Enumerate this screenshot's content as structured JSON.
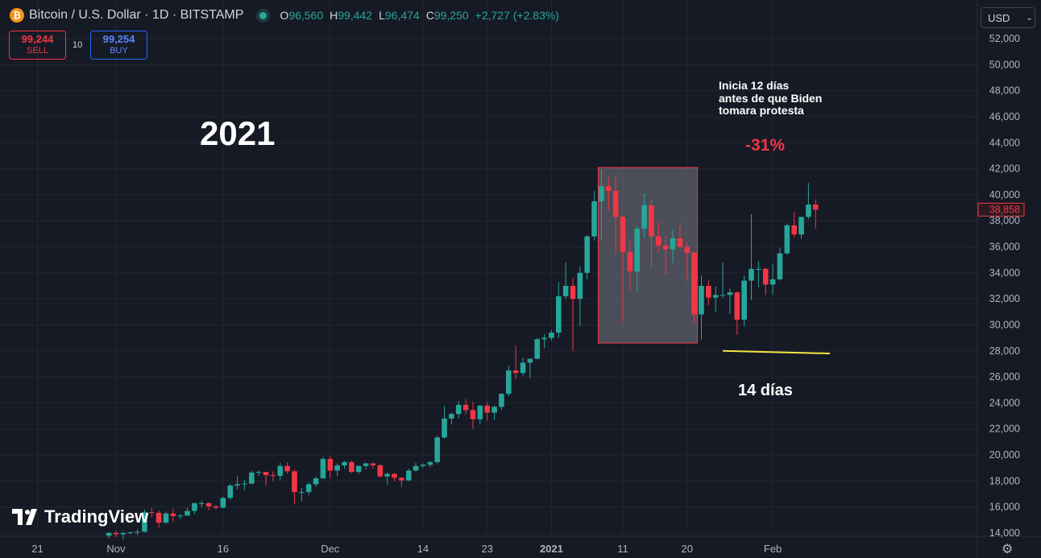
{
  "header": {
    "symbol_icon": "bitcoin-icon",
    "title": "Bitcoin / U.S. Dollar · 1D · BITSTAMP",
    "ohlc": [
      {
        "k": "O",
        "v": "96,560"
      },
      {
        "k": "H",
        "v": "99,442"
      },
      {
        "k": "L",
        "v": "96,474"
      },
      {
        "k": "C",
        "v": "99,250"
      },
      {
        "k": "",
        "v": "+2,727 (+2.83%)"
      }
    ]
  },
  "trade": {
    "sell_price": "99,244",
    "sell_label": "SELL",
    "spread": "10",
    "buy_price": "99,254",
    "buy_label": "BUY"
  },
  "currency": {
    "value": "USD",
    "icon": "chevron-down-icon"
  },
  "brand": {
    "name": "TradingView",
    "icon": "tradingview-logo-icon"
  },
  "settings_icon": "gear-icon",
  "colors": {
    "up": "#26a69a",
    "down": "#f23645",
    "background": "#161a25",
    "grid": "#232632",
    "trendline": "#f5e642"
  },
  "annotations": {
    "year": "2021",
    "note": [
      "Inicia 12 días",
      "antes de que Biden",
      "tomara protesta"
    ],
    "percent": "-31%",
    "duration": "14 días"
  },
  "chart_data": {
    "type": "candlestick",
    "title": "",
    "xlabel": "",
    "ylabel": "",
    "ylim": [
      14000,
      53000
    ],
    "grid": true,
    "last_price_label": "38,858",
    "y_ticks": [
      14000,
      16000,
      18000,
      20000,
      22000,
      24000,
      26000,
      28000,
      30000,
      32000,
      34000,
      36000,
      38000,
      40000,
      42000,
      44000,
      46000,
      48000,
      50000,
      52000
    ],
    "x_ticks": [
      "21",
      "Nov",
      "16",
      "Dec",
      "14",
      "23",
      "2021",
      "11",
      "20",
      "Feb"
    ],
    "candles": [
      {
        "date": "2020-10-31",
        "o": 13800,
        "h": 14100,
        "l": 13600,
        "c": 14000
      },
      {
        "date": "2020-11-01",
        "o": 14000,
        "h": 14200,
        "l": 13700,
        "c": 13900
      },
      {
        "date": "2020-11-02",
        "o": 13900,
        "h": 14100,
        "l": 13500,
        "c": 14000
      },
      {
        "date": "2020-11-03",
        "o": 14000,
        "h": 14100,
        "l": 13900,
        "c": 14050
      },
      {
        "date": "2020-11-04",
        "o": 14050,
        "h": 14300,
        "l": 13850,
        "c": 14100
      },
      {
        "date": "2020-11-05",
        "o": 14100,
        "h": 15800,
        "l": 14050,
        "c": 15600
      },
      {
        "date": "2020-11-06",
        "o": 15600,
        "h": 15950,
        "l": 15200,
        "c": 15550
      },
      {
        "date": "2020-11-07",
        "o": 15550,
        "h": 15750,
        "l": 14400,
        "c": 14800
      },
      {
        "date": "2020-11-08",
        "o": 14800,
        "h": 15650,
        "l": 14700,
        "c": 15500
      },
      {
        "date": "2020-11-09",
        "o": 15500,
        "h": 15850,
        "l": 14850,
        "c": 15300
      },
      {
        "date": "2020-11-10",
        "o": 15300,
        "h": 15450,
        "l": 15100,
        "c": 15350
      },
      {
        "date": "2020-11-11",
        "o": 15350,
        "h": 15950,
        "l": 15300,
        "c": 15700
      },
      {
        "date": "2020-11-12",
        "o": 15700,
        "h": 16300,
        "l": 15450,
        "c": 16300
      },
      {
        "date": "2020-11-13",
        "o": 16300,
        "h": 16500,
        "l": 15950,
        "c": 16300
      },
      {
        "date": "2020-11-14",
        "o": 16300,
        "h": 16350,
        "l": 15750,
        "c": 16050
      },
      {
        "date": "2020-11-15",
        "o": 16050,
        "h": 16150,
        "l": 15800,
        "c": 15950
      },
      {
        "date": "2020-11-16",
        "o": 15950,
        "h": 16800,
        "l": 15900,
        "c": 16700
      },
      {
        "date": "2020-11-17",
        "o": 16700,
        "h": 17800,
        "l": 16550,
        "c": 17650
      },
      {
        "date": "2020-11-18",
        "o": 17650,
        "h": 18400,
        "l": 17350,
        "c": 17750
      },
      {
        "date": "2020-11-19",
        "o": 17750,
        "h": 18100,
        "l": 17300,
        "c": 17800
      },
      {
        "date": "2020-11-20",
        "o": 17800,
        "h": 18800,
        "l": 17750,
        "c": 18650
      },
      {
        "date": "2020-11-21",
        "o": 18650,
        "h": 18800,
        "l": 18400,
        "c": 18700
      },
      {
        "date": "2020-11-22",
        "o": 18700,
        "h": 18700,
        "l": 17650,
        "c": 18450
      },
      {
        "date": "2020-11-23",
        "o": 18450,
        "h": 18750,
        "l": 18000,
        "c": 18400
      },
      {
        "date": "2020-11-24",
        "o": 18400,
        "h": 19400,
        "l": 18050,
        "c": 19150
      },
      {
        "date": "2020-11-25",
        "o": 19150,
        "h": 19450,
        "l": 18550,
        "c": 18750
      },
      {
        "date": "2020-11-26",
        "o": 18750,
        "h": 18900,
        "l": 16250,
        "c": 17150
      },
      {
        "date": "2020-11-27",
        "o": 17150,
        "h": 17450,
        "l": 16450,
        "c": 17150
      },
      {
        "date": "2020-11-28",
        "o": 17150,
        "h": 17900,
        "l": 16900,
        "c": 17750
      },
      {
        "date": "2020-11-29",
        "o": 17750,
        "h": 18350,
        "l": 17550,
        "c": 18200
      },
      {
        "date": "2020-11-30",
        "o": 18200,
        "h": 19850,
        "l": 18200,
        "c": 19700
      },
      {
        "date": "2020-12-01",
        "o": 19700,
        "h": 19900,
        "l": 18200,
        "c": 18800
      },
      {
        "date": "2020-12-02",
        "o": 18800,
        "h": 19350,
        "l": 18350,
        "c": 19200
      },
      {
        "date": "2020-12-03",
        "o": 19200,
        "h": 19550,
        "l": 18950,
        "c": 19450
      },
      {
        "date": "2020-12-04",
        "o": 19450,
        "h": 19550,
        "l": 18600,
        "c": 18700
      },
      {
        "date": "2020-12-05",
        "o": 18700,
        "h": 19200,
        "l": 18550,
        "c": 19150
      },
      {
        "date": "2020-12-06",
        "o": 19150,
        "h": 19400,
        "l": 18900,
        "c": 19350
      },
      {
        "date": "2020-12-07",
        "o": 19350,
        "h": 19400,
        "l": 18950,
        "c": 19200
      },
      {
        "date": "2020-12-08",
        "o": 19200,
        "h": 19300,
        "l": 18250,
        "c": 18350
      },
      {
        "date": "2020-12-09",
        "o": 18350,
        "h": 18650,
        "l": 17700,
        "c": 18550
      },
      {
        "date": "2020-12-10",
        "o": 18550,
        "h": 18600,
        "l": 17950,
        "c": 18250
      },
      {
        "date": "2020-12-11",
        "o": 18250,
        "h": 18300,
        "l": 17550,
        "c": 18050
      },
      {
        "date": "2020-12-12",
        "o": 18050,
        "h": 18950,
        "l": 18000,
        "c": 18800
      },
      {
        "date": "2020-12-13",
        "o": 18800,
        "h": 19400,
        "l": 18750,
        "c": 19150
      },
      {
        "date": "2020-12-14",
        "o": 19150,
        "h": 19350,
        "l": 19000,
        "c": 19250
      },
      {
        "date": "2020-12-15",
        "o": 19250,
        "h": 19550,
        "l": 19050,
        "c": 19450
      },
      {
        "date": "2020-12-16",
        "o": 19450,
        "h": 21500,
        "l": 19300,
        "c": 21350
      },
      {
        "date": "2020-12-17",
        "o": 21350,
        "h": 23750,
        "l": 21250,
        "c": 22800
      },
      {
        "date": "2020-12-18",
        "o": 22800,
        "h": 23250,
        "l": 22350,
        "c": 23150
      },
      {
        "date": "2020-12-19",
        "o": 23150,
        "h": 24150,
        "l": 22800,
        "c": 23850
      },
      {
        "date": "2020-12-20",
        "o": 23850,
        "h": 24300,
        "l": 23100,
        "c": 23450
      },
      {
        "date": "2020-12-21",
        "o": 23450,
        "h": 24100,
        "l": 22000,
        "c": 22750
      },
      {
        "date": "2020-12-22",
        "o": 22750,
        "h": 23800,
        "l": 22350,
        "c": 23800
      },
      {
        "date": "2020-12-23",
        "o": 23800,
        "h": 24100,
        "l": 22650,
        "c": 23250
      },
      {
        "date": "2020-12-24",
        "o": 23250,
        "h": 23800,
        "l": 22700,
        "c": 23700
      },
      {
        "date": "2020-12-25",
        "o": 23700,
        "h": 24750,
        "l": 23450,
        "c": 24700
      },
      {
        "date": "2020-12-26",
        "o": 24700,
        "h": 26850,
        "l": 24500,
        "c": 26500
      },
      {
        "date": "2020-12-27",
        "o": 26500,
        "h": 28400,
        "l": 25850,
        "c": 26300
      },
      {
        "date": "2020-12-28",
        "o": 26300,
        "h": 27500,
        "l": 26100,
        "c": 27100
      },
      {
        "date": "2020-12-29",
        "o": 27100,
        "h": 27400,
        "l": 25900,
        "c": 27400
      },
      {
        "date": "2020-12-30",
        "o": 27400,
        "h": 29000,
        "l": 27350,
        "c": 28900
      },
      {
        "date": "2020-12-31",
        "o": 28900,
        "h": 29300,
        "l": 28200,
        "c": 29000
      },
      {
        "date": "2021-01-01",
        "o": 29000,
        "h": 29600,
        "l": 28800,
        "c": 29400
      },
      {
        "date": "2021-01-02",
        "o": 29400,
        "h": 33300,
        "l": 29000,
        "c": 32200
      },
      {
        "date": "2021-01-03",
        "o": 32200,
        "h": 34800,
        "l": 32000,
        "c": 33000
      },
      {
        "date": "2021-01-04",
        "o": 33000,
        "h": 33600,
        "l": 28000,
        "c": 32000
      },
      {
        "date": "2021-01-05",
        "o": 32000,
        "h": 34500,
        "l": 29900,
        "c": 34000
      },
      {
        "date": "2021-01-06",
        "o": 34000,
        "h": 36900,
        "l": 33500,
        "c": 36800
      },
      {
        "date": "2021-01-07",
        "o": 36800,
        "h": 40300,
        "l": 36500,
        "c": 39500
      },
      {
        "date": "2021-01-08",
        "o": 39500,
        "h": 41950,
        "l": 36500,
        "c": 40650
      },
      {
        "date": "2021-01-09",
        "o": 40650,
        "h": 41350,
        "l": 38800,
        "c": 40300
      },
      {
        "date": "2021-01-10",
        "o": 40300,
        "h": 41400,
        "l": 35400,
        "c": 38300
      },
      {
        "date": "2021-01-11",
        "o": 38300,
        "h": 38400,
        "l": 30250,
        "c": 35600
      },
      {
        "date": "2021-01-12",
        "o": 35600,
        "h": 36600,
        "l": 32600,
        "c": 34100
      },
      {
        "date": "2021-01-13",
        "o": 34100,
        "h": 37600,
        "l": 32500,
        "c": 37400
      },
      {
        "date": "2021-01-14",
        "o": 37400,
        "h": 40100,
        "l": 36700,
        "c": 39200
      },
      {
        "date": "2021-01-15",
        "o": 39200,
        "h": 39700,
        "l": 34400,
        "c": 36800
      },
      {
        "date": "2021-01-16",
        "o": 36800,
        "h": 37900,
        "l": 35600,
        "c": 36100
      },
      {
        "date": "2021-01-17",
        "o": 36100,
        "h": 36850,
        "l": 33850,
        "c": 35800
      },
      {
        "date": "2021-01-18",
        "o": 35800,
        "h": 37300,
        "l": 34750,
        "c": 36650
      },
      {
        "date": "2021-01-19",
        "o": 36650,
        "h": 37850,
        "l": 35900,
        "c": 36000
      },
      {
        "date": "2021-01-20",
        "o": 36000,
        "h": 36400,
        "l": 33400,
        "c": 35550
      },
      {
        "date": "2021-01-21",
        "o": 35550,
        "h": 35600,
        "l": 30100,
        "c": 30800
      },
      {
        "date": "2021-01-22",
        "o": 30800,
        "h": 33800,
        "l": 28850,
        "c": 33000
      },
      {
        "date": "2021-01-23",
        "o": 33000,
        "h": 33450,
        "l": 31500,
        "c": 32100
      },
      {
        "date": "2021-01-24",
        "o": 32100,
        "h": 32950,
        "l": 30950,
        "c": 32300
      },
      {
        "date": "2021-01-25",
        "o": 32300,
        "h": 34800,
        "l": 32100,
        "c": 32300
      },
      {
        "date": "2021-01-26",
        "o": 32300,
        "h": 32800,
        "l": 30850,
        "c": 32500
      },
      {
        "date": "2021-01-27",
        "o": 32500,
        "h": 32550,
        "l": 29250,
        "c": 30400
      },
      {
        "date": "2021-01-28",
        "o": 30400,
        "h": 33800,
        "l": 29900,
        "c": 33400
      },
      {
        "date": "2021-01-29",
        "o": 33400,
        "h": 38500,
        "l": 31900,
        "c": 34300
      },
      {
        "date": "2021-01-30",
        "o": 34300,
        "h": 34900,
        "l": 32900,
        "c": 34300
      },
      {
        "date": "2021-01-31",
        "o": 34300,
        "h": 34400,
        "l": 32300,
        "c": 33100
      },
      {
        "date": "2021-02-01",
        "o": 33100,
        "h": 34700,
        "l": 32300,
        "c": 33500
      },
      {
        "date": "2021-02-02",
        "o": 33500,
        "h": 35900,
        "l": 33400,
        "c": 35500
      },
      {
        "date": "2021-02-03",
        "o": 35500,
        "h": 37800,
        "l": 35400,
        "c": 37650
      },
      {
        "date": "2021-02-04",
        "o": 37650,
        "h": 38700,
        "l": 36700,
        "c": 36950
      },
      {
        "date": "2021-02-05",
        "o": 36950,
        "h": 38300,
        "l": 36600,
        "c": 38300
      },
      {
        "date": "2021-02-06",
        "o": 38300,
        "h": 40900,
        "l": 38100,
        "c": 39250
      },
      {
        "date": "2021-02-07",
        "o": 39250,
        "h": 39650,
        "l": 37400,
        "c": 38858
      }
    ],
    "highlight_box": {
      "date_start": "2021-01-08",
      "date_end": "2021-01-21",
      "price_high": 42100,
      "price_low": 28600
    },
    "trendline": {
      "date_start": "2021-01-25",
      "price_start": 28000,
      "date_end": "2021-02-09",
      "price_end": 27800
    }
  }
}
